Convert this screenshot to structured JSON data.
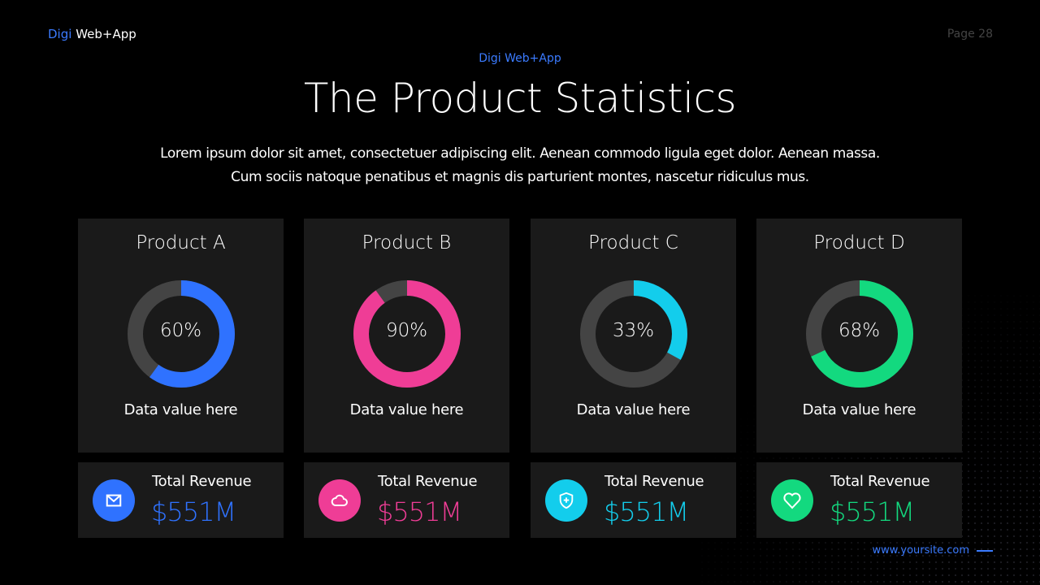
{
  "header": {
    "brand_accent": "Digi",
    "brand_rest": " Web+App",
    "page": "Page 28",
    "subtitle": "Digi Web+App",
    "title": "The Product Statistics",
    "description_1": "Lorem ipsum dolor sit amet, consectetuer adipiscing elit. Aenean commodo ligula eget dolor. Aenean massa.",
    "description_2": "Cum sociis natoque penatibus et magnis dis parturient montes, nascetur ridiculus mus."
  },
  "products": [
    {
      "name": "Product A",
      "percent_label": "60%",
      "caption": "Data value here",
      "revenue_label": "Total Revenue",
      "revenue": "$551M",
      "icon": "mail-icon"
    },
    {
      "name": "Product B",
      "percent_label": "90%",
      "caption": "Data value here",
      "revenue_label": "Total Revenue",
      "revenue": "$551M",
      "icon": "cloud-icon"
    },
    {
      "name": "Product C",
      "percent_label": "33%",
      "caption": "Data value here",
      "revenue_label": "Total Revenue",
      "revenue": "$551M",
      "icon": "shield-plus-icon"
    },
    {
      "name": "Product D",
      "percent_label": "68%",
      "caption": "Data value here",
      "revenue_label": "Total Revenue",
      "revenue": "$551M",
      "icon": "heart-icon"
    }
  ],
  "chart_data": [
    {
      "type": "pie",
      "title": "Product A",
      "values": [
        60,
        40
      ],
      "colors": [
        "#2f72ff",
        "#444444"
      ]
    },
    {
      "type": "pie",
      "title": "Product B",
      "values": [
        90,
        10
      ],
      "colors": [
        "#ef3d96",
        "#444444"
      ]
    },
    {
      "type": "pie",
      "title": "Product C",
      "values": [
        33,
        67
      ],
      "colors": [
        "#13cdec",
        "#444444"
      ]
    },
    {
      "type": "pie",
      "title": "Product D",
      "values": [
        68,
        32
      ],
      "colors": [
        "#13d97f",
        "#444444"
      ]
    }
  ],
  "footer": {
    "site": "www.yoursite.com"
  }
}
